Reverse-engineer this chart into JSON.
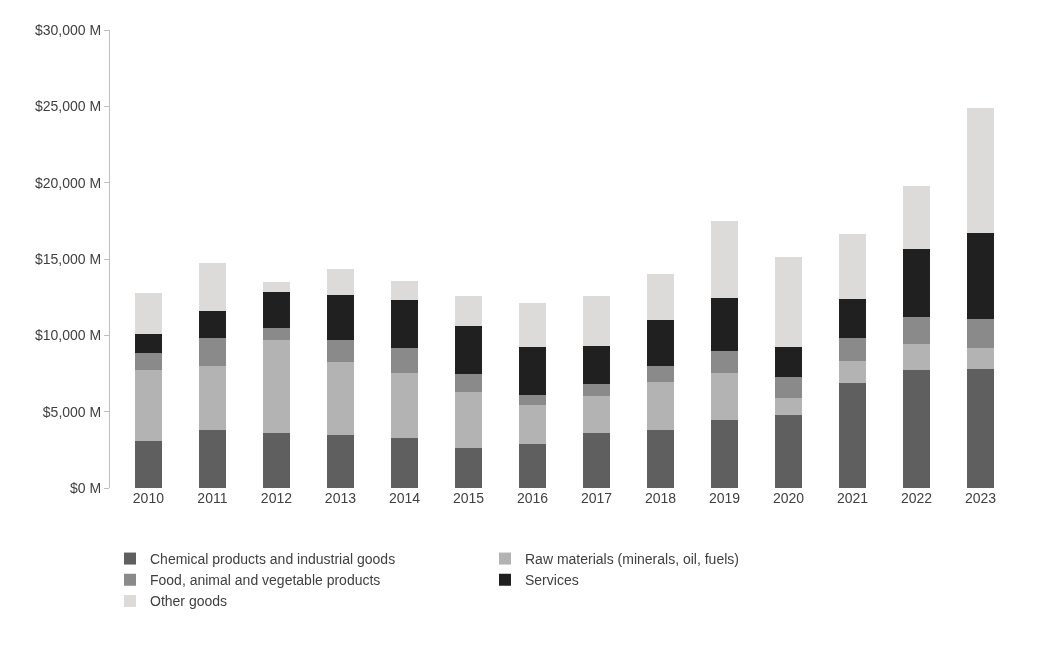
{
  "chart_data": {
    "type": "bar",
    "stacked": true,
    "categories": [
      "2010",
      "2011",
      "2012",
      "2013",
      "2014",
      "2015",
      "2016",
      "2017",
      "2018",
      "2019",
      "2020",
      "2021",
      "2022",
      "2023"
    ],
    "series": [
      {
        "name": "Chemical products and industrial goods",
        "color": "#5f5f5f",
        "values": [
          3100,
          3800,
          3600,
          3500,
          3300,
          2650,
          2900,
          3600,
          3800,
          4450,
          4750,
          6900,
          7750,
          7800
        ]
      },
      {
        "name": "Raw materials (minerals, oil, fuels)",
        "color": "#b3b3b3",
        "values": [
          4600,
          4200,
          6100,
          4750,
          4250,
          3650,
          2550,
          2400,
          3150,
          3100,
          1150,
          1450,
          1650,
          1350
        ]
      },
      {
        "name": "Food, animal and vegetable products",
        "color": "#8a8a8a",
        "values": [
          1150,
          1800,
          800,
          1450,
          1650,
          1200,
          650,
          800,
          1050,
          1450,
          1350,
          1450,
          1800,
          1900
        ]
      },
      {
        "name": "Services",
        "color": "#202020",
        "values": [
          1250,
          1800,
          2350,
          2950,
          3100,
          3100,
          3150,
          2500,
          3000,
          3450,
          2000,
          2600,
          4450,
          5650
        ]
      },
      {
        "name": "Other goods",
        "color": "#dcdbda",
        "values": [
          2700,
          3150,
          650,
          1700,
          1250,
          1950,
          2850,
          3250,
          3000,
          5050,
          5850,
          4250,
          4100,
          8200
        ]
      }
    ],
    "ylim": [
      0,
      30000
    ],
    "yticks": [
      {
        "value": 0,
        "label": "$0 M"
      },
      {
        "value": 5000,
        "label": "$5,000 M"
      },
      {
        "value": 10000,
        "label": "$10,000 M"
      },
      {
        "value": 15000,
        "label": "$15,000 M"
      },
      {
        "value": 20000,
        "label": "$20,000 M"
      },
      {
        "value": 25000,
        "label": "$25,000 M"
      },
      {
        "value": 30000,
        "label": "$30,000 M"
      }
    ],
    "grid": false,
    "legend": "bottom"
  }
}
